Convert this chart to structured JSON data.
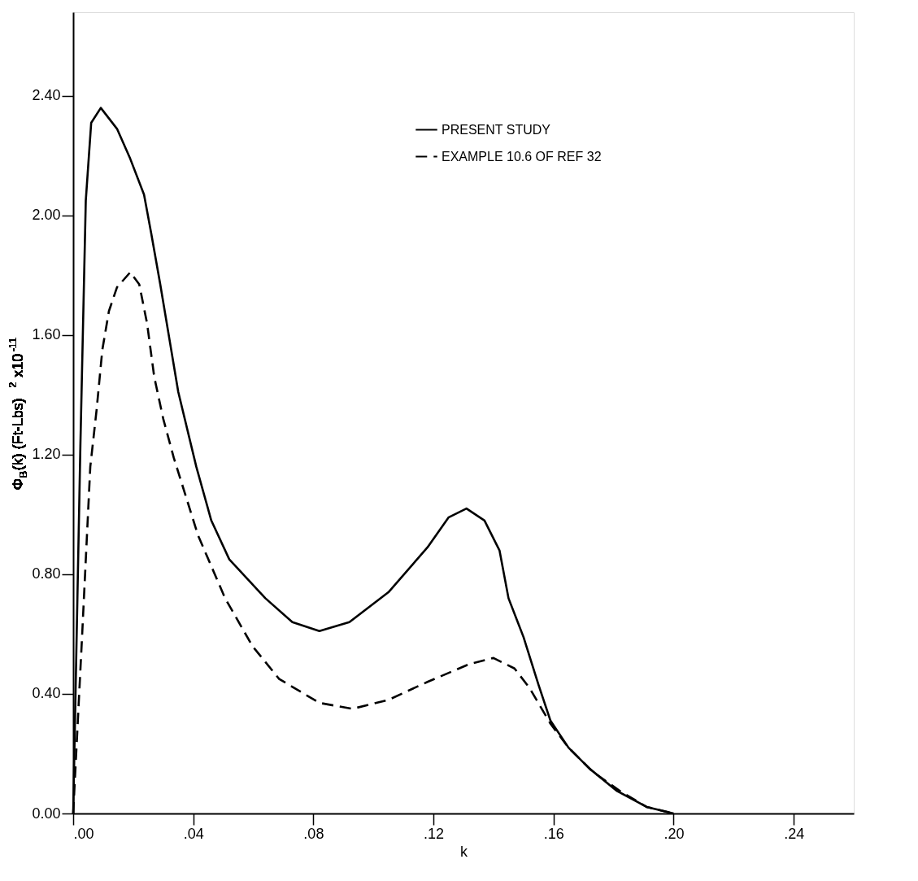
{
  "chart_data": {
    "type": "line",
    "xlabel": "k",
    "ylabel": "Φ$_{B}$(k)  (Ft-Lbs)$^{2}$ x10$^{-11}$",
    "xlim": [
      0,
      0.26
    ],
    "ylim": [
      0,
      2.68
    ],
    "xticks": [
      {
        "value": 0,
        "label": ".00"
      },
      {
        "value": 0.04,
        "label": ".04"
      },
      {
        "value": 0.08,
        "label": ".08"
      },
      {
        "value": 0.12,
        "label": ".12"
      },
      {
        "value": 0.16,
        "label": ".16"
      },
      {
        "value": 0.2,
        "label": ".20"
      },
      {
        "value": 0.24,
        "label": ".24"
      }
    ],
    "yticks": [
      {
        "value": 0,
        "label": "0.00"
      },
      {
        "value": 0.4,
        "label": "0.40"
      },
      {
        "value": 0.8,
        "label": "0.80"
      },
      {
        "value": 1.2,
        "label": "1.20"
      },
      {
        "value": 1.6,
        "label": "1.60"
      },
      {
        "value": 2.0,
        "label": "2.00"
      },
      {
        "value": 2.4,
        "label": "2.40"
      }
    ],
    "grid": false,
    "legend": "top right",
    "marker": "none",
    "series": [
      {
        "name": "PRESENT STUDY",
        "color": "#000000",
        "line_style": "solid",
        "x": [
          0,
          0.0024,
          0.0042,
          0.006,
          0.0092,
          0.0146,
          0.019,
          0.0236,
          0.026,
          0.029,
          0.032,
          0.035,
          0.041,
          0.046,
          0.052,
          0.064,
          0.073,
          0.082,
          0.092,
          0.105,
          0.118,
          0.125,
          0.131,
          0.137,
          0.142,
          0.145,
          0.15,
          0.155,
          0.159,
          0.165,
          0.172,
          0.181,
          0.191,
          0.2
        ],
        "values": [
          0,
          1.23,
          2.05,
          2.31,
          2.36,
          2.29,
          2.19,
          2.07,
          1.94,
          1.77,
          1.59,
          1.41,
          1.16,
          0.98,
          0.85,
          0.72,
          0.64,
          0.61,
          0.64,
          0.74,
          0.89,
          0.99,
          1.02,
          0.98,
          0.88,
          0.72,
          0.59,
          0.43,
          0.31,
          0.22,
          0.15,
          0.076,
          0.022,
          0
        ]
      },
      {
        "name": "EXAMPLE 10.6 OF REF 32",
        "color": "#000000",
        "line_style": "dashed",
        "x": [
          0,
          0.003,
          0.0057,
          0.0078,
          0.0097,
          0.0119,
          0.0146,
          0.019,
          0.022,
          0.0246,
          0.027,
          0.03,
          0.0335,
          0.0416,
          0.0506,
          0.0597,
          0.0686,
          0.082,
          0.093,
          0.105,
          0.118,
          0.132,
          0.14,
          0.147,
          0.152,
          0.159,
          0.165,
          0.173,
          0.182,
          0.191,
          0.2
        ],
        "values": [
          0,
          0.6,
          1.16,
          1.35,
          1.55,
          1.68,
          1.76,
          1.81,
          1.77,
          1.64,
          1.46,
          1.32,
          1.19,
          0.93,
          0.72,
          0.56,
          0.45,
          0.37,
          0.35,
          0.38,
          0.44,
          0.5,
          0.52,
          0.485,
          0.42,
          0.3,
          0.22,
          0.14,
          0.076,
          0.022,
          0
        ]
      }
    ]
  }
}
